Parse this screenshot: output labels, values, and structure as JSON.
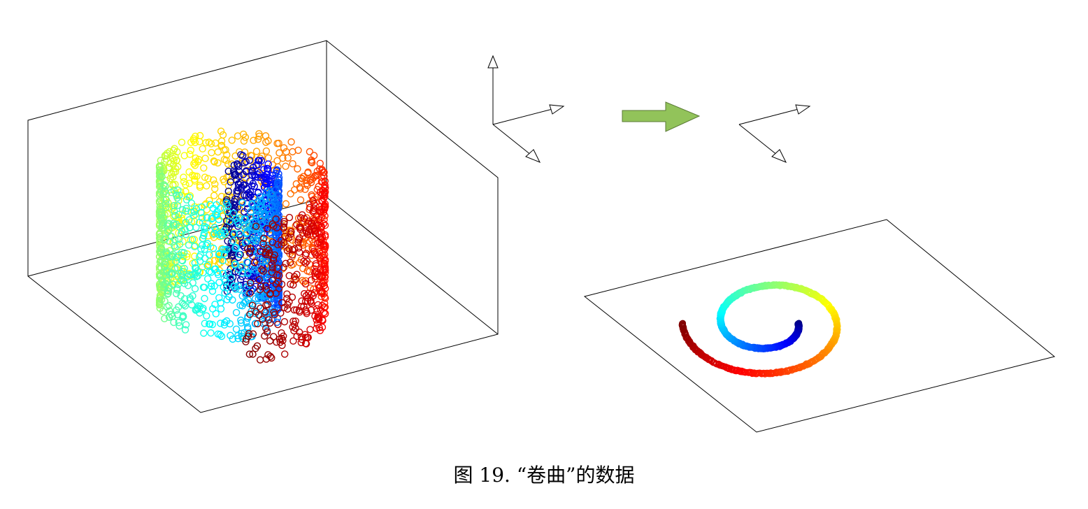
{
  "caption": "图 19. “卷曲”的数据",
  "colors": {
    "colormap": "jet",
    "arrow_fill": "#92c35a",
    "arrow_stroke": "#5a7a35",
    "box_stroke": "#000000",
    "background": "#ffffff"
  },
  "panels": [
    {
      "kind": "3d-scatter",
      "description_icon": "swiss-roll-3d-scatter",
      "marker": "open-circle",
      "point_count": 2000
    },
    {
      "kind": "axes-transform-icon",
      "description_icon": "projection-arrow"
    },
    {
      "kind": "2d-embedding",
      "description_icon": "unrolled-spiral-on-plane",
      "marker": "open-circle"
    }
  ]
}
